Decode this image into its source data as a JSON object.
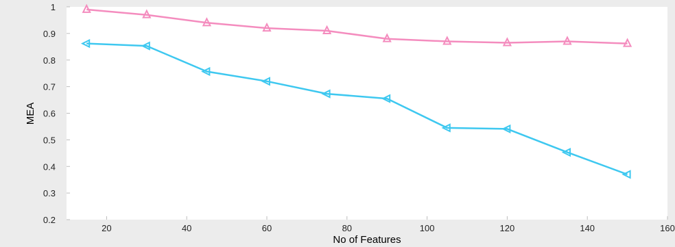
{
  "chart_data": {
    "type": "line",
    "title": "",
    "xlabel": "No of Features",
    "ylabel": "MEA",
    "xlim": [
      10,
      160
    ],
    "ylim": [
      0.2,
      1
    ],
    "xticks": [
      20,
      40,
      60,
      80,
      100,
      120,
      140,
      160
    ],
    "yticks": [
      0.2,
      0.3,
      0.4,
      0.5,
      0.6,
      0.7,
      0.8,
      0.9,
      1
    ],
    "xtick_labels": [
      "20",
      "40",
      "60",
      "80",
      "100",
      "120",
      "140",
      "160"
    ],
    "ytick_labels": [
      "0.2",
      "0.3",
      "0.4",
      "0.5",
      "0.6",
      "0.7",
      "0.8",
      "0.9",
      "1"
    ],
    "grid": false,
    "x": [
      15,
      30,
      45,
      60,
      75,
      90,
      105,
      120,
      135,
      150
    ],
    "series": [
      {
        "color": "#f48cbe",
        "marker": "triangle-up",
        "values": [
          0.99,
          0.97,
          0.94,
          0.92,
          0.91,
          0.88,
          0.87,
          0.865,
          0.87,
          0.862
        ]
      },
      {
        "color": "#3ec8f0",
        "marker": "triangle-left",
        "values": [
          0.862,
          0.853,
          0.757,
          0.72,
          0.673,
          0.655,
          0.545,
          0.541,
          0.453,
          0.37
        ]
      }
    ]
  }
}
